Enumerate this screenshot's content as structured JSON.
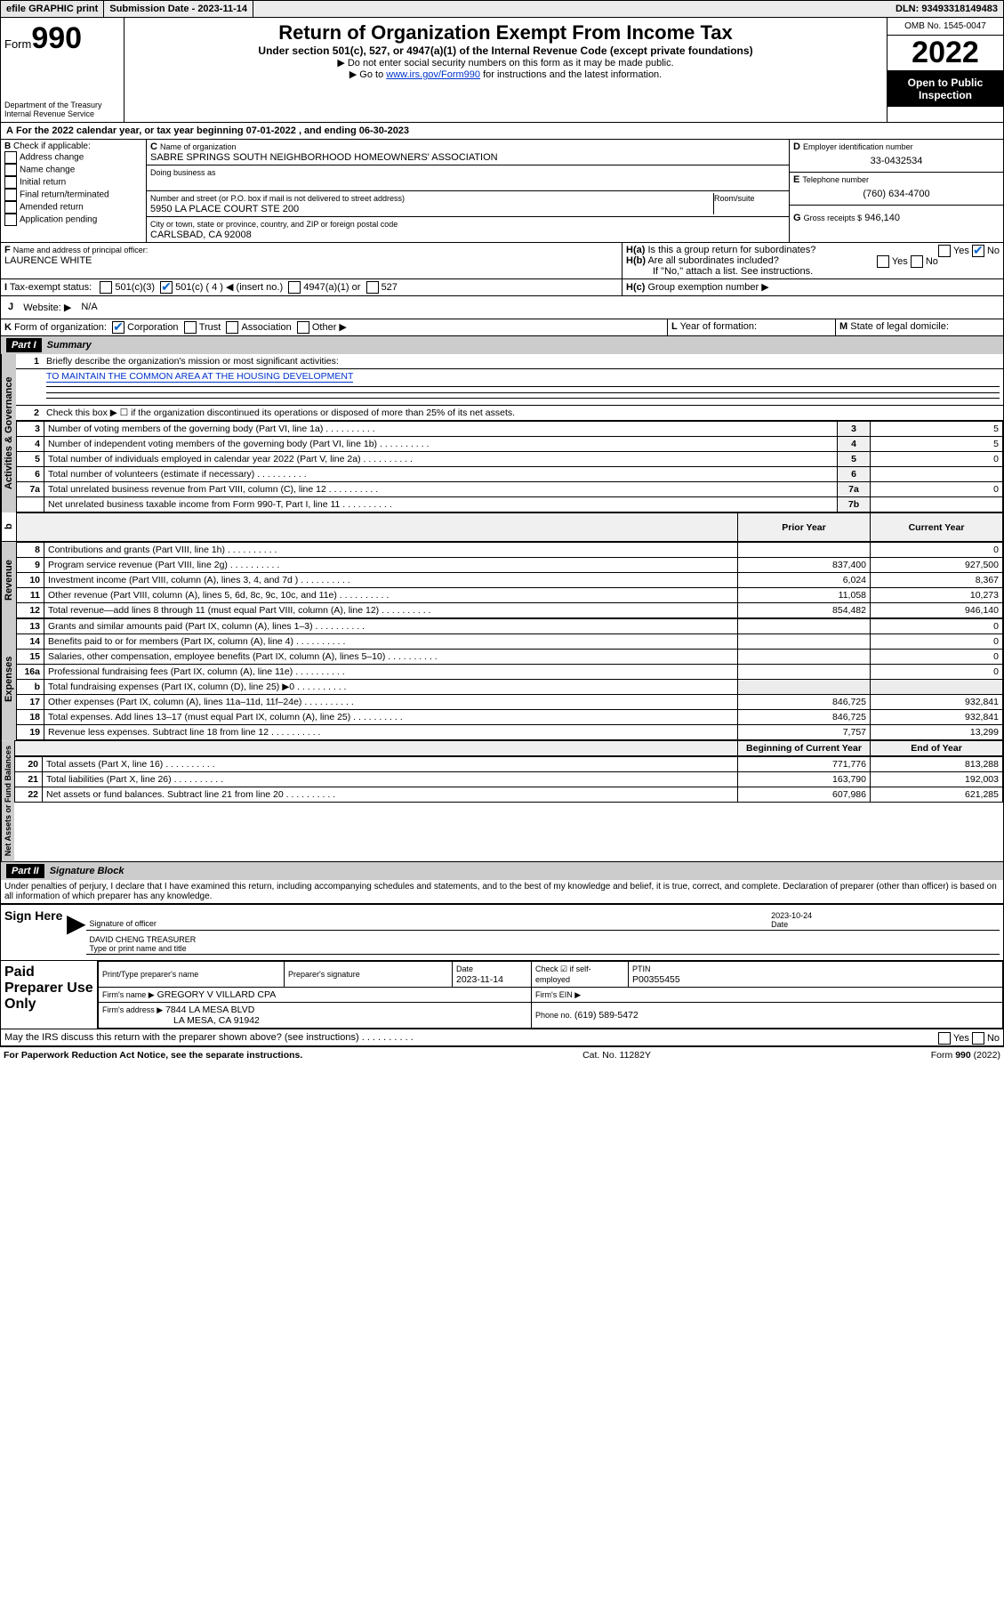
{
  "topbar": {
    "efile": "efile GRAPHIC print",
    "submission": "Submission Date - 2023-11-14",
    "dln": "DLN: 93493318149483"
  },
  "header": {
    "form_prefix": "Form",
    "form_number": "990",
    "dept": "Department of the Treasury",
    "irs": "Internal Revenue Service",
    "title": "Return of Organization Exempt From Income Tax",
    "subtitle": "Under section 501(c), 527, or 4947(a)(1) of the Internal Revenue Code (except private foundations)",
    "instr1": "▶ Do not enter social security numbers on this form as it may be made public.",
    "instr2_a": "▶ Go to ",
    "instr2_link": "www.irs.gov/Form990",
    "instr2_b": " for instructions and the latest information.",
    "omb": "OMB No. 1545-0047",
    "year": "2022",
    "open": "Open to Public Inspection"
  },
  "A": {
    "text": "For the 2022 calendar year, or tax year beginning 07-01-2022   , and ending 06-30-2023"
  },
  "B": {
    "label": "Check if applicable:",
    "items": [
      "Address change",
      "Name change",
      "Initial return",
      "Final return/terminated",
      "Amended return",
      "Application pending"
    ]
  },
  "C": {
    "name_label": "Name of organization",
    "name": "SABRE SPRINGS SOUTH NEIGHBORHOOD HOMEOWNERS' ASSOCIATION",
    "dba_label": "Doing business as",
    "dba": "",
    "street_label": "Number and street (or P.O. box if mail is not delivered to street address)",
    "suite_label": "Room/suite",
    "street": "5950 LA PLACE COURT STE 200",
    "city_label": "City or town, state or province, country, and ZIP or foreign postal code",
    "city": "CARLSBAD, CA  92008"
  },
  "D": {
    "label": "Employer identification number",
    "val": "33-0432534"
  },
  "E": {
    "label": "Telephone number",
    "val": "(760) 634-4700"
  },
  "G": {
    "label": "Gross receipts $",
    "val": "946,140"
  },
  "F": {
    "label": "Name and address of principal officer:",
    "val": "LAURENCE WHITE"
  },
  "H": {
    "a": "Is this a group return for subordinates?",
    "b": "Are all subordinates included?",
    "c": "Group exemption number ▶",
    "ifno": "If \"No,\" attach a list. See instructions.",
    "yes": "Yes",
    "no": "No"
  },
  "I": {
    "label": "Tax-exempt status:",
    "o1": "501(c)(3)",
    "o2": "501(c) ( 4 ) ◀ (insert no.)",
    "o3": "4947(a)(1) or",
    "o4": "527"
  },
  "J": {
    "label": "Website: ▶",
    "val": "N/A"
  },
  "K": {
    "label": "Form of organization:",
    "o1": "Corporation",
    "o2": "Trust",
    "o3": "Association",
    "o4": "Other ▶"
  },
  "L": {
    "label": "Year of formation:",
    "val": ""
  },
  "M": {
    "label": "State of legal domicile:",
    "val": ""
  },
  "part1": {
    "hdr": "Part I",
    "title": "Summary",
    "l1": "Briefly describe the organization's mission or most significant activities:",
    "l1v": "TO MAINTAIN THE COMMON AREA AT THE HOUSING DEVELOPMENT",
    "l2": "Check this box ▶ ☐  if the organization discontinued its operations or disposed of more than 25% of its net assets.",
    "rows": [
      {
        "n": "3",
        "t": "Number of voting members of the governing body (Part VI, line 1a)",
        "r": "3",
        "v": "5"
      },
      {
        "n": "4",
        "t": "Number of independent voting members of the governing body (Part VI, line 1b)",
        "r": "4",
        "v": "5"
      },
      {
        "n": "5",
        "t": "Total number of individuals employed in calendar year 2022 (Part V, line 2a)",
        "r": "5",
        "v": "0"
      },
      {
        "n": "6",
        "t": "Total number of volunteers (estimate if necessary)",
        "r": "6",
        "v": ""
      },
      {
        "n": "7a",
        "t": "Total unrelated business revenue from Part VIII, column (C), line 12",
        "r": "7a",
        "v": "0"
      },
      {
        "n": "",
        "t": "Net unrelated business taxable income from Form 990-T, Part I, line 11",
        "r": "7b",
        "v": ""
      }
    ],
    "col_prior": "Prior Year",
    "col_curr": "Current Year",
    "rev": [
      {
        "n": "8",
        "t": "Contributions and grants (Part VIII, line 1h)",
        "p": "",
        "c": "0"
      },
      {
        "n": "9",
        "t": "Program service revenue (Part VIII, line 2g)",
        "p": "837,400",
        "c": "927,500"
      },
      {
        "n": "10",
        "t": "Investment income (Part VIII, column (A), lines 3, 4, and 7d )",
        "p": "6,024",
        "c": "8,367"
      },
      {
        "n": "11",
        "t": "Other revenue (Part VIII, column (A), lines 5, 6d, 8c, 9c, 10c, and 11e)",
        "p": "11,058",
        "c": "10,273"
      },
      {
        "n": "12",
        "t": "Total revenue—add lines 8 through 11 (must equal Part VIII, column (A), line 12)",
        "p": "854,482",
        "c": "946,140"
      }
    ],
    "exp": [
      {
        "n": "13",
        "t": "Grants and similar amounts paid (Part IX, column (A), lines 1–3)",
        "p": "",
        "c": "0"
      },
      {
        "n": "14",
        "t": "Benefits paid to or for members (Part IX, column (A), line 4)",
        "p": "",
        "c": "0"
      },
      {
        "n": "15",
        "t": "Salaries, other compensation, employee benefits (Part IX, column (A), lines 5–10)",
        "p": "",
        "c": "0"
      },
      {
        "n": "16a",
        "t": "Professional fundraising fees (Part IX, column (A), line 11e)",
        "p": "",
        "c": "0"
      },
      {
        "n": "b",
        "t": "Total fundraising expenses (Part IX, column (D), line 25) ▶0",
        "p": "—",
        "c": "—"
      },
      {
        "n": "17",
        "t": "Other expenses (Part IX, column (A), lines 11a–11d, 11f–24e)",
        "p": "846,725",
        "c": "932,841"
      },
      {
        "n": "18",
        "t": "Total expenses. Add lines 13–17 (must equal Part IX, column (A), line 25)",
        "p": "846,725",
        "c": "932,841"
      },
      {
        "n": "19",
        "t": "Revenue less expenses. Subtract line 18 from line 12",
        "p": "7,757",
        "c": "13,299"
      }
    ],
    "col_beg": "Beginning of Current Year",
    "col_end": "End of Year",
    "net": [
      {
        "n": "20",
        "t": "Total assets (Part X, line 16)",
        "p": "771,776",
        "c": "813,288"
      },
      {
        "n": "21",
        "t": "Total liabilities (Part X, line 26)",
        "p": "163,790",
        "c": "192,003"
      },
      {
        "n": "22",
        "t": "Net assets or fund balances. Subtract line 21 from line 20",
        "p": "607,986",
        "c": "621,285"
      }
    ],
    "vtabs": {
      "ag": "Activities & Governance",
      "rev": "Revenue",
      "exp": "Expenses",
      "net": "Net Assets or Fund Balances"
    }
  },
  "part2": {
    "hdr": "Part II",
    "title": "Signature Block",
    "penalty": "Under penalties of perjury, I declare that I have examined this return, including accompanying schedules and statements, and to the best of my knowledge and belief, it is true, correct, and complete. Declaration of preparer (other than officer) is based on all information of which preparer has any knowledge.",
    "sign_here": "Sign Here",
    "sig_officer": "Signature of officer",
    "sig_date": "Date",
    "sig_date_v": "2023-10-24",
    "sig_name": "DAVID CHENG TREASURER",
    "sig_name_l": "Type or print name and title",
    "paid": "Paid Preparer Use Only",
    "p_name": "Print/Type preparer's name",
    "p_sig": "Preparer's signature",
    "p_date": "Date",
    "p_date_v": "2023-11-14",
    "p_check": "Check ☑ if self-employed",
    "p_ptin": "PTIN",
    "p_ptin_v": "P00355455",
    "firm_name": "Firm's name    ▶",
    "firm_name_v": "GREGORY V VILLARD CPA",
    "firm_ein": "Firm's EIN ▶",
    "firm_addr": "Firm's address ▶",
    "firm_addr_v": "7844 LA MESA BLVD",
    "firm_addr2": "LA MESA, CA  91942",
    "phone": "Phone no.",
    "phone_v": "(619) 589-5472",
    "discuss": "May the IRS discuss this return with the preparer shown above? (see instructions)"
  },
  "footer": {
    "pra": "For Paperwork Reduction Act Notice, see the separate instructions.",
    "cat": "Cat. No. 11282Y",
    "form": "Form 990 (2022)"
  }
}
